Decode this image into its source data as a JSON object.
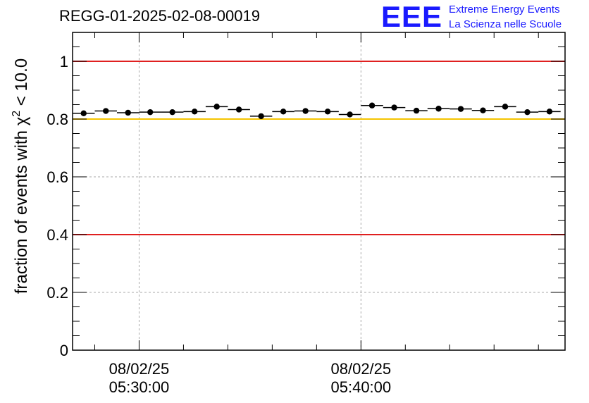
{
  "header": {
    "title": "REGG-01-2025-02-08-00019",
    "logo_mark": "EEE",
    "logo_line1": "Extreme Energy Events",
    "logo_line2": "La Scienza nelle Scuole"
  },
  "chart_data": {
    "type": "scatter",
    "title": "REGG-01-2025-02-08-00019",
    "ylabel": "fraction of events with χ² < 10.0",
    "ylabel_parts": {
      "prefix": "fraction of events with ",
      "symbol": "χ",
      "sup": "2",
      "suffix": " < 10.0"
    },
    "xlabel": "",
    "ylim": [
      0,
      1.1
    ],
    "xlim_minutes": [
      -3,
      19.2
    ],
    "yticks": [
      0,
      0.2,
      0.4,
      0.6,
      0.8,
      1
    ],
    "ytick_labels": [
      "0",
      "0.2",
      "0.4",
      "0.6",
      "0.8",
      "1"
    ],
    "xticks": [
      {
        "minutes": 0,
        "date": "08/02/25",
        "time": "05:30:00"
      },
      {
        "minutes": 10,
        "date": "08/02/25",
        "time": "05:40:00"
      }
    ],
    "grid": true,
    "reference_lines": [
      {
        "y": 1.0,
        "color": "#e02020"
      },
      {
        "y": 0.8,
        "color": "#f5c400"
      },
      {
        "y": 0.4,
        "color": "#e02020"
      }
    ],
    "bin_width_minutes": 1,
    "x_minutes": [
      -2.5,
      -1.5,
      -0.5,
      0.5,
      1.5,
      2.5,
      3.5,
      4.5,
      5.5,
      6.5,
      7.5,
      8.5,
      9.5,
      10.5,
      11.5,
      12.5,
      13.5,
      14.5,
      15.5,
      16.5,
      17.5,
      18.5
    ],
    "values": [
      0.82,
      0.828,
      0.822,
      0.824,
      0.824,
      0.826,
      0.843,
      0.833,
      0.81,
      0.826,
      0.828,
      0.826,
      0.816,
      0.847,
      0.84,
      0.829,
      0.836,
      0.835,
      0.83,
      0.843,
      0.824,
      0.826
    ]
  }
}
